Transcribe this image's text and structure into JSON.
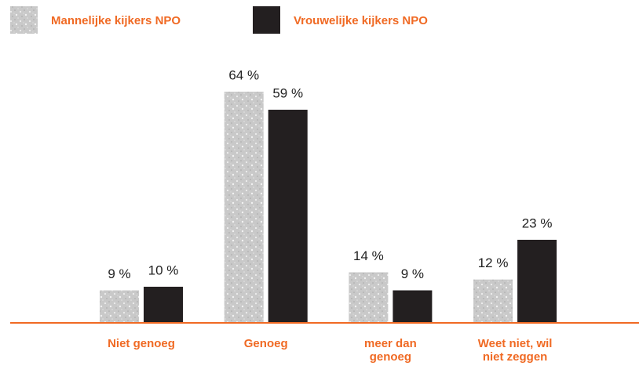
{
  "chart_data": {
    "type": "bar",
    "categories": [
      "Niet genoeg",
      "Genoeg",
      "meer dan genoeg",
      "Weet niet, wil niet zeggen"
    ],
    "series": [
      {
        "name": "Mannelijke kijkers NPO",
        "color": "#c9c9c9",
        "values": [
          9,
          64,
          14,
          12
        ],
        "value_labels": [
          "9 %",
          "64 %",
          "14 %",
          "12 %"
        ]
      },
      {
        "name": "Vrouwelijke kijkers NPO",
        "color": "#231f20",
        "values": [
          10,
          59,
          9,
          23
        ],
        "value_labels": [
          "10 %",
          "59 %",
          "9 %",
          "23 %"
        ]
      }
    ],
    "axis_color": "#f06a24"
  }
}
